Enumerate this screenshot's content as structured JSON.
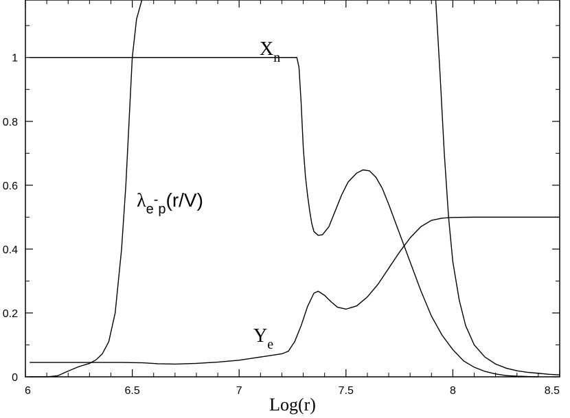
{
  "chart_data": {
    "type": "line",
    "title": "",
    "xlabel": "Log(r)",
    "ylabel": "",
    "xlim": [
      6.0,
      8.5
    ],
    "ylim": [
      0.0,
      1.18
    ],
    "grid": false,
    "x_ticks": [
      {
        "value": 6.0,
        "label": "6"
      },
      {
        "value": 6.5,
        "label": "6.5"
      },
      {
        "value": 7.0,
        "label": "7"
      },
      {
        "value": 7.5,
        "label": "7.5"
      },
      {
        "value": 8.0,
        "label": "8"
      },
      {
        "value": 8.5,
        "label": "8.5"
      }
    ],
    "y_ticks": [
      {
        "value": 0.0,
        "label": "0"
      },
      {
        "value": 0.2,
        "label": "0.2"
      },
      {
        "value": 0.4,
        "label": "0.4"
      },
      {
        "value": 0.6,
        "label": "0.6"
      },
      {
        "value": 0.8,
        "label": "0.8"
      },
      {
        "value": 1.0,
        "label": "1"
      }
    ],
    "annotations": [
      {
        "id": "xn",
        "text": "X",
        "sub": "n"
      },
      {
        "id": "lambda",
        "text": "λ",
        "sub": "e",
        "sup": "-",
        "sub2": "p",
        "tail": "(r/V)"
      },
      {
        "id": "ye",
        "text": "Y",
        "sub": "e"
      }
    ],
    "series": [
      {
        "id": "xn",
        "points": [
          [
            6.02,
            1.0
          ],
          [
            7.27,
            1.0
          ],
          [
            7.28,
            0.97
          ],
          [
            7.29,
            0.86
          ],
          [
            7.3,
            0.72
          ],
          [
            7.31,
            0.63
          ],
          [
            7.32,
            0.57
          ],
          [
            7.33,
            0.52
          ],
          [
            7.34,
            0.48
          ],
          [
            7.35,
            0.455
          ],
          [
            7.37,
            0.443
          ],
          [
            7.39,
            0.445
          ],
          [
            7.42,
            0.47
          ],
          [
            7.45,
            0.52
          ],
          [
            7.48,
            0.57
          ],
          [
            7.51,
            0.61
          ],
          [
            7.55,
            0.638
          ],
          [
            7.58,
            0.648
          ],
          [
            7.61,
            0.645
          ],
          [
            7.64,
            0.625
          ],
          [
            7.67,
            0.59
          ],
          [
            7.7,
            0.54
          ],
          [
            7.75,
            0.45
          ],
          [
            7.8,
            0.36
          ],
          [
            7.85,
            0.27
          ],
          [
            7.9,
            0.19
          ],
          [
            7.95,
            0.13
          ],
          [
            8.0,
            0.085
          ],
          [
            8.05,
            0.05
          ],
          [
            8.1,
            0.03
          ],
          [
            8.15,
            0.017
          ],
          [
            8.2,
            0.009
          ],
          [
            8.25,
            0.004
          ],
          [
            8.3,
            0.002
          ],
          [
            8.35,
            0.001
          ],
          [
            8.4,
            0.0
          ]
        ]
      },
      {
        "id": "lambda",
        "points": [
          [
            6.02,
            0.0
          ],
          [
            6.1,
            0.0
          ],
          [
            6.15,
            0.003
          ],
          [
            6.2,
            0.018
          ],
          [
            6.25,
            0.032
          ],
          [
            6.3,
            0.042
          ],
          [
            6.33,
            0.053
          ],
          [
            6.36,
            0.072
          ],
          [
            6.39,
            0.11
          ],
          [
            6.42,
            0.2
          ],
          [
            6.45,
            0.4
          ],
          [
            6.47,
            0.6
          ],
          [
            6.485,
            0.8
          ],
          [
            6.5,
            1.0
          ],
          [
            6.52,
            1.12
          ],
          [
            6.545,
            1.18
          ]
        ]
      },
      {
        "id": "lambda-right",
        "points": [
          [
            7.92,
            1.18
          ],
          [
            7.94,
            0.95
          ],
          [
            7.96,
            0.7
          ],
          [
            7.98,
            0.5
          ],
          [
            8.0,
            0.36
          ],
          [
            8.03,
            0.24
          ],
          [
            8.06,
            0.16
          ],
          [
            8.1,
            0.1
          ],
          [
            8.15,
            0.062
          ],
          [
            8.2,
            0.04
          ],
          [
            8.25,
            0.027
          ],
          [
            8.3,
            0.019
          ],
          [
            8.35,
            0.014
          ],
          [
            8.4,
            0.011
          ],
          [
            8.45,
            0.008
          ],
          [
            8.5,
            0.006
          ]
        ]
      },
      {
        "id": "ye",
        "points": [
          [
            6.02,
            0.045
          ],
          [
            6.3,
            0.045
          ],
          [
            6.45,
            0.045
          ],
          [
            6.55,
            0.044
          ],
          [
            6.62,
            0.041
          ],
          [
            6.7,
            0.04
          ],
          [
            6.8,
            0.042
          ],
          [
            6.9,
            0.046
          ],
          [
            7.0,
            0.052
          ],
          [
            7.08,
            0.06
          ],
          [
            7.15,
            0.067
          ],
          [
            7.2,
            0.072
          ],
          [
            7.23,
            0.08
          ],
          [
            7.26,
            0.11
          ],
          [
            7.29,
            0.16
          ],
          [
            7.32,
            0.22
          ],
          [
            7.35,
            0.262
          ],
          [
            7.37,
            0.268
          ],
          [
            7.4,
            0.255
          ],
          [
            7.43,
            0.235
          ],
          [
            7.46,
            0.218
          ],
          [
            7.5,
            0.212
          ],
          [
            7.55,
            0.222
          ],
          [
            7.6,
            0.25
          ],
          [
            7.65,
            0.29
          ],
          [
            7.7,
            0.34
          ],
          [
            7.75,
            0.39
          ],
          [
            7.8,
            0.435
          ],
          [
            7.85,
            0.47
          ],
          [
            7.9,
            0.49
          ],
          [
            7.95,
            0.497
          ],
          [
            8.0,
            0.499
          ],
          [
            8.1,
            0.5
          ],
          [
            8.3,
            0.5
          ],
          [
            8.5,
            0.5
          ]
        ]
      }
    ]
  }
}
